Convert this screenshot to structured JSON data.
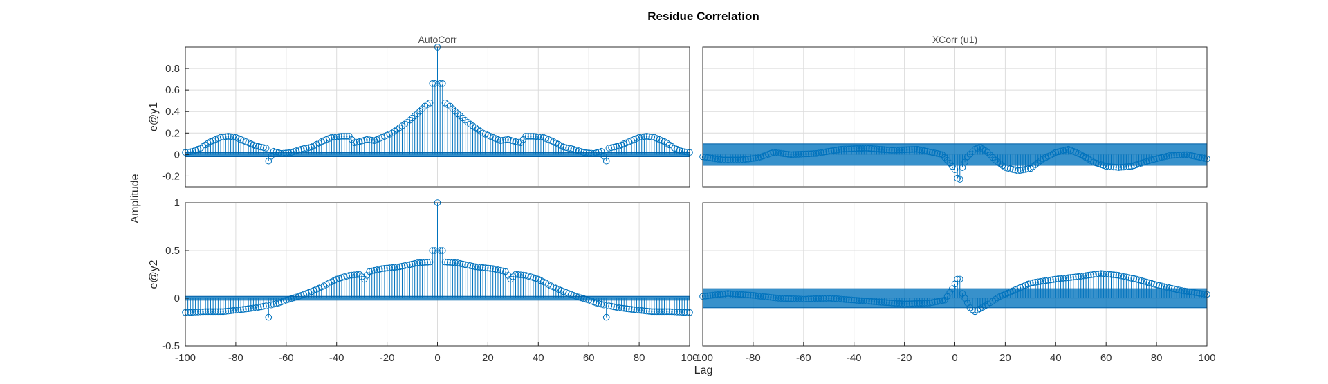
{
  "figure": {
    "title": "Residue Correlation",
    "xlabel": "Lag",
    "ylabel": "Amplitude",
    "column_titles": [
      "AutoCorr",
      "XCorr (u1)"
    ],
    "row_labels": [
      "e@y1",
      "e@y2"
    ],
    "colors": {
      "stem": "#0072bd",
      "band": "#0072bd",
      "grid": "#dcdcdc"
    }
  },
  "chart_data": [
    {
      "type": "stem",
      "title": "AutoCorr",
      "ylabel": "e@y1",
      "xlim": [
        -100,
        100
      ],
      "ylim": [
        -0.3,
        1.0
      ],
      "xticks": [],
      "yticks": [
        -0.2,
        0,
        0.2,
        0.4,
        0.6,
        0.8
      ],
      "confidence_band": [
        -0.02,
        0.02
      ],
      "grid": true,
      "symmetric": true,
      "knots": [
        [
          0,
          1.0
        ],
        [
          1,
          0.66
        ],
        [
          2,
          0.66
        ],
        [
          3,
          0.48
        ],
        [
          5,
          0.45
        ],
        [
          8,
          0.38
        ],
        [
          12,
          0.3
        ],
        [
          18,
          0.2
        ],
        [
          22,
          0.16
        ],
        [
          25,
          0.13
        ],
        [
          28,
          0.14
        ],
        [
          31,
          0.12
        ],
        [
          33,
          0.11
        ],
        [
          35,
          0.17
        ],
        [
          38,
          0.17
        ],
        [
          42,
          0.16
        ],
        [
          46,
          0.12
        ],
        [
          50,
          0.07
        ],
        [
          54,
          0.05
        ],
        [
          58,
          0.02
        ],
        [
          62,
          0.01
        ],
        [
          65,
          0.03
        ],
        [
          67,
          -0.06
        ],
        [
          68,
          0.06
        ],
        [
          72,
          0.08
        ],
        [
          76,
          0.12
        ],
        [
          80,
          0.16
        ],
        [
          83,
          0.17
        ],
        [
          86,
          0.16
        ],
        [
          90,
          0.12
        ],
        [
          94,
          0.06
        ],
        [
          97,
          0.03
        ],
        [
          100,
          0.02
        ]
      ]
    },
    {
      "type": "stem",
      "title": "XCorr (u1)",
      "ylabel": "",
      "xlim": [
        -100,
        100
      ],
      "ylim": [
        -0.3,
        1.0
      ],
      "xticks": [],
      "yticks": [],
      "confidence_band": [
        -0.1,
        0.1
      ],
      "grid": true,
      "symmetric": false,
      "knots": [
        [
          -100,
          -0.02
        ],
        [
          -92,
          -0.05
        ],
        [
          -85,
          -0.05
        ],
        [
          -78,
          -0.03
        ],
        [
          -72,
          0.02
        ],
        [
          -65,
          0.0
        ],
        [
          -55,
          0.01
        ],
        [
          -45,
          0.05
        ],
        [
          -35,
          0.06
        ],
        [
          -25,
          0.04
        ],
        [
          -15,
          0.05
        ],
        [
          -5,
          0.0
        ],
        [
          -2,
          -0.08
        ],
        [
          0,
          -0.14
        ],
        [
          1,
          -0.22
        ],
        [
          2,
          -0.23
        ],
        [
          3,
          -0.12
        ],
        [
          5,
          -0.02
        ],
        [
          8,
          0.05
        ],
        [
          10,
          0.07
        ],
        [
          13,
          0.02
        ],
        [
          16,
          -0.05
        ],
        [
          20,
          -0.12
        ],
        [
          25,
          -0.15
        ],
        [
          30,
          -0.13
        ],
        [
          35,
          -0.04
        ],
        [
          40,
          0.02
        ],
        [
          45,
          0.05
        ],
        [
          50,
          0.0
        ],
        [
          55,
          -0.07
        ],
        [
          60,
          -0.11
        ],
        [
          65,
          -0.12
        ],
        [
          70,
          -0.11
        ],
        [
          78,
          -0.05
        ],
        [
          85,
          -0.01
        ],
        [
          92,
          0.0
        ],
        [
          100,
          -0.04
        ]
      ]
    },
    {
      "type": "stem",
      "title": "",
      "ylabel": "e@y2",
      "xlim": [
        -100,
        100
      ],
      "ylim": [
        -0.5,
        1.0
      ],
      "xticks": [
        -100,
        -80,
        -60,
        -40,
        -20,
        0,
        20,
        40,
        60,
        80,
        100
      ],
      "yticks": [
        -0.5,
        0,
        0.5,
        1
      ],
      "confidence_band": [
        -0.02,
        0.02
      ],
      "grid": true,
      "symmetric": true,
      "knots": [
        [
          0,
          1.0
        ],
        [
          1,
          0.5
        ],
        [
          2,
          0.5
        ],
        [
          3,
          0.38
        ],
        [
          8,
          0.37
        ],
        [
          15,
          0.33
        ],
        [
          22,
          0.31
        ],
        [
          27,
          0.28
        ],
        [
          29,
          0.2
        ],
        [
          31,
          0.25
        ],
        [
          35,
          0.24
        ],
        [
          40,
          0.2
        ],
        [
          45,
          0.13
        ],
        [
          50,
          0.07
        ],
        [
          55,
          0.02
        ],
        [
          60,
          -0.02
        ],
        [
          63,
          -0.05
        ],
        [
          66,
          -0.07
        ],
        [
          67,
          -0.2
        ],
        [
          68,
          -0.08
        ],
        [
          72,
          -0.1
        ],
        [
          78,
          -0.12
        ],
        [
          85,
          -0.14
        ],
        [
          92,
          -0.14
        ],
        [
          100,
          -0.15
        ]
      ]
    },
    {
      "type": "stem",
      "title": "",
      "ylabel": "",
      "xlim": [
        -100,
        100
      ],
      "ylim": [
        -0.5,
        1.0
      ],
      "xticks": [
        -100,
        -80,
        -60,
        -40,
        -20,
        0,
        20,
        40,
        60,
        80,
        100
      ],
      "yticks": [],
      "confidence_band": [
        -0.1,
        0.1
      ],
      "grid": true,
      "symmetric": false,
      "knots": [
        [
          -100,
          0.02
        ],
        [
          -90,
          0.05
        ],
        [
          -80,
          0.03
        ],
        [
          -70,
          0.0
        ],
        [
          -60,
          -0.01
        ],
        [
          -50,
          0.0
        ],
        [
          -40,
          -0.02
        ],
        [
          -30,
          -0.04
        ],
        [
          -20,
          -0.06
        ],
        [
          -10,
          -0.05
        ],
        [
          -4,
          -0.02
        ],
        [
          -1,
          0.1
        ],
        [
          1,
          0.2
        ],
        [
          2,
          0.2
        ],
        [
          3,
          0.05
        ],
        [
          6,
          -0.1
        ],
        [
          8,
          -0.14
        ],
        [
          12,
          -0.08
        ],
        [
          18,
          0.02
        ],
        [
          25,
          0.1
        ],
        [
          30,
          0.16
        ],
        [
          40,
          0.2
        ],
        [
          50,
          0.23
        ],
        [
          58,
          0.26
        ],
        [
          65,
          0.24
        ],
        [
          72,
          0.2
        ],
        [
          80,
          0.14
        ],
        [
          90,
          0.08
        ],
        [
          100,
          0.04
        ]
      ]
    }
  ]
}
